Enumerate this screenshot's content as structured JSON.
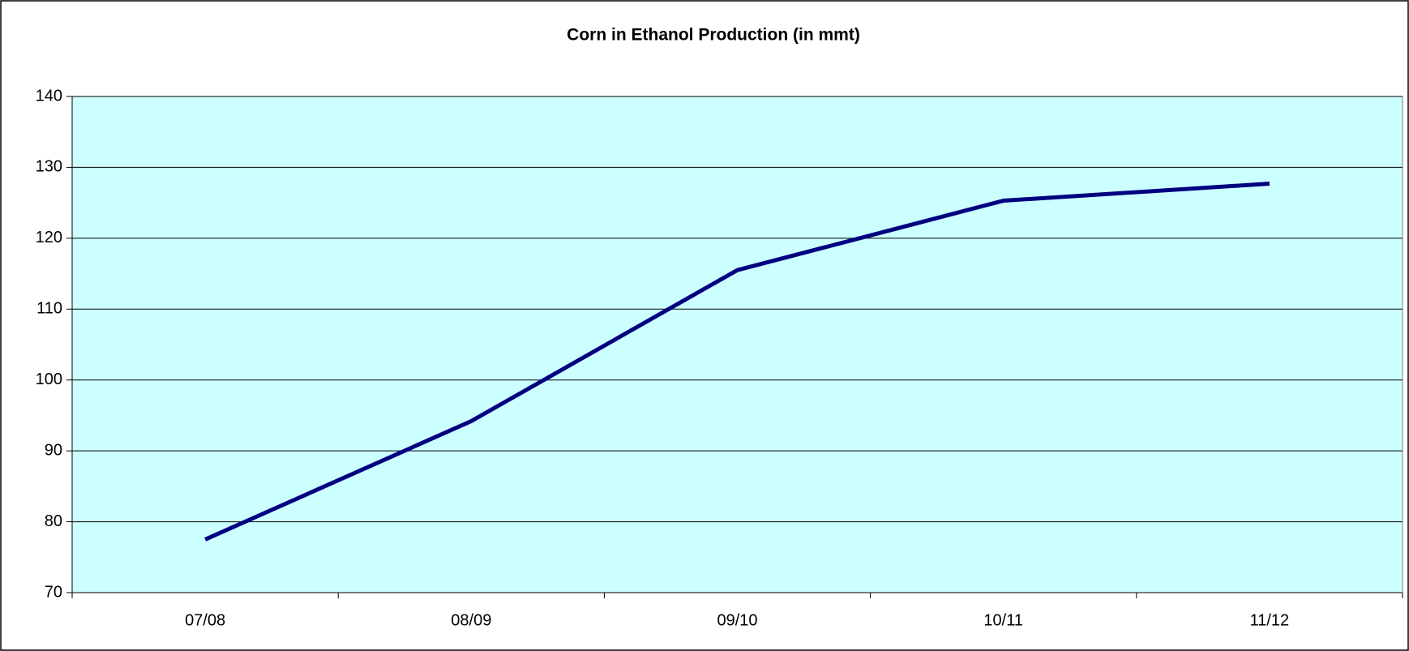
{
  "chart_data": {
    "type": "line",
    "title": "Corn in Ethanol Production (in mmt)",
    "categories": [
      "07/08",
      "08/09",
      "09/10",
      "10/11",
      "11/12"
    ],
    "series": [
      {
        "name": "Corn in Ethanol Production",
        "color": "#000080",
        "values": [
          77.5,
          94.2,
          115.5,
          125.3,
          127.7
        ]
      }
    ],
    "ylim": [
      70,
      140
    ],
    "yticks": [
      70,
      80,
      90,
      100,
      110,
      120,
      130,
      140
    ],
    "grid": true,
    "plot_background": "#ccffff"
  }
}
